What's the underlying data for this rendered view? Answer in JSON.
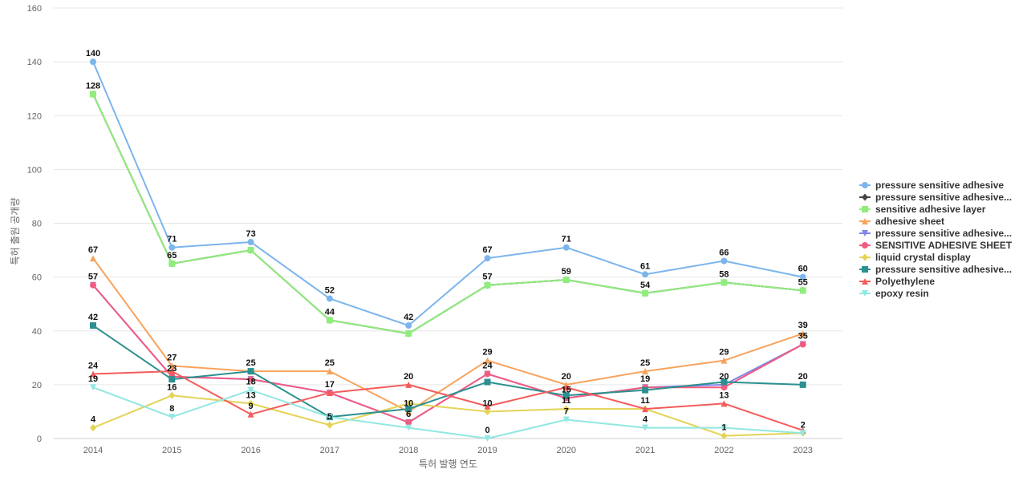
{
  "chart_data": {
    "type": "line",
    "title": "",
    "xlabel": "특허 발행 연도",
    "ylabel": "특허 출원 공개량",
    "ylim": [
      0,
      160
    ],
    "yticks": [
      0,
      20,
      40,
      60,
      80,
      100,
      120,
      140,
      160
    ],
    "grid": true,
    "legend_position": "right",
    "categories": [
      "2014",
      "2015",
      "2016",
      "2017",
      "2018",
      "2019",
      "2020",
      "2021",
      "2022",
      "2023"
    ],
    "series": [
      {
        "name": "pressure sensitive adhesive",
        "color": "#7cb5ec",
        "marker": "circle",
        "labels_shown": true,
        "values": [
          140,
          71,
          73,
          52,
          42,
          67,
          71,
          61,
          66,
          60
        ]
      },
      {
        "name": "pressure sensitive adhesive...",
        "color": "#434348",
        "marker": "diamond",
        "labels_shown": false,
        "values": [
          128,
          65,
          70,
          44,
          39,
          57,
          59,
          54,
          58,
          55
        ]
      },
      {
        "name": "sensitive adhesive layer",
        "color": "#90ed7d",
        "marker": "square",
        "labels_shown": true,
        "values": [
          128,
          65,
          70,
          44,
          39,
          57,
          59,
          54,
          58,
          55
        ]
      },
      {
        "name": "adhesive sheet",
        "color": "#f7a35c",
        "marker": "triangle",
        "labels_shown": true,
        "values": [
          67,
          27,
          25,
          25,
          10,
          29,
          20,
          25,
          29,
          39
        ]
      },
      {
        "name": "pressure sensitive adhesive...",
        "color": "#8085e9",
        "marker": "triangle-down",
        "labels_shown": false,
        "values": [
          57,
          23,
          22,
          17,
          6,
          24,
          15,
          19,
          20,
          35
        ]
      },
      {
        "name": "SENSITIVE ADHESIVE SHEET",
        "color": "#f15c80",
        "marker": "circle",
        "labels_shown": true,
        "values": [
          57,
          23,
          22,
          17,
          6,
          24,
          15,
          19,
          19,
          35
        ]
      },
      {
        "name": "liquid crystal display",
        "color": "#e4d354",
        "marker": "diamond",
        "labels_shown": true,
        "values": [
          4,
          16,
          13,
          5,
          13,
          10,
          11,
          11,
          1,
          2
        ]
      },
      {
        "name": "pressure sensitive adhesive...",
        "color": "#2b908f",
        "marker": "square",
        "labels_shown": true,
        "values": [
          42,
          22,
          25,
          8,
          11,
          21,
          16,
          18,
          21,
          20
        ]
      },
      {
        "name": "Polyethylene",
        "color": "#f45b5b",
        "marker": "triangle",
        "labels_shown": true,
        "values": [
          24,
          25,
          9,
          17,
          20,
          12,
          19,
          11,
          13,
          3
        ]
      },
      {
        "name": "epoxy resin",
        "color": "#91e8e1",
        "marker": "triangle-down",
        "labels_shown": true,
        "values": [
          19,
          8,
          18,
          8,
          4,
          0,
          7,
          4,
          4,
          2
        ]
      }
    ],
    "data_labels": [
      {
        "year": "2014",
        "value": 140,
        "text": "140"
      },
      {
        "year": "2014",
        "value": 128,
        "text": "128"
      },
      {
        "year": "2014",
        "value": 67,
        "text": "67"
      },
      {
        "year": "2014",
        "value": 57,
        "text": "57"
      },
      {
        "year": "2014",
        "value": 42,
        "text": "42"
      },
      {
        "year": "2014",
        "value": 24,
        "text": "24"
      },
      {
        "year": "2014",
        "value": 19,
        "text": "19"
      },
      {
        "year": "2014",
        "value": 4,
        "text": "4"
      },
      {
        "year": "2015",
        "value": 71,
        "text": "71"
      },
      {
        "year": "2015",
        "value": 65,
        "text": "65"
      },
      {
        "year": "2015",
        "value": 27,
        "text": "27"
      },
      {
        "year": "2015",
        "value": 23,
        "text": "23"
      },
      {
        "year": "2015",
        "value": 16,
        "text": "16"
      },
      {
        "year": "2015",
        "value": 8,
        "text": "8"
      },
      {
        "year": "2016",
        "value": 73,
        "text": "73"
      },
      {
        "year": "2016",
        "value": 25,
        "text": "25"
      },
      {
        "year": "2016",
        "value": 18,
        "text": "18"
      },
      {
        "year": "2016",
        "value": 13,
        "text": "13"
      },
      {
        "year": "2016",
        "value": 9,
        "text": "9"
      },
      {
        "year": "2017",
        "value": 52,
        "text": "52"
      },
      {
        "year": "2017",
        "value": 44,
        "text": "44"
      },
      {
        "year": "2017",
        "value": 25,
        "text": "25"
      },
      {
        "year": "2017",
        "value": 17,
        "text": "17"
      },
      {
        "year": "2017",
        "value": 5,
        "text": "5"
      },
      {
        "year": "2018",
        "value": 42,
        "text": "42"
      },
      {
        "year": "2018",
        "value": 20,
        "text": "20"
      },
      {
        "year": "2018",
        "value": 10,
        "text": "10"
      },
      {
        "year": "2018",
        "value": 6,
        "text": "6"
      },
      {
        "year": "2019",
        "value": 67,
        "text": "67"
      },
      {
        "year": "2019",
        "value": 57,
        "text": "57"
      },
      {
        "year": "2019",
        "value": 29,
        "text": "29"
      },
      {
        "year": "2019",
        "value": 24,
        "text": "24"
      },
      {
        "year": "2019",
        "value": 10,
        "text": "10"
      },
      {
        "year": "2019",
        "value": 0,
        "text": "0"
      },
      {
        "year": "2020",
        "value": 71,
        "text": "71"
      },
      {
        "year": "2020",
        "value": 59,
        "text": "59"
      },
      {
        "year": "2020",
        "value": 20,
        "text": "20"
      },
      {
        "year": "2020",
        "value": 15,
        "text": "15"
      },
      {
        "year": "2020",
        "value": 11,
        "text": "11"
      },
      {
        "year": "2020",
        "value": 7,
        "text": "7"
      },
      {
        "year": "2021",
        "value": 61,
        "text": "61"
      },
      {
        "year": "2021",
        "value": 54,
        "text": "54"
      },
      {
        "year": "2021",
        "value": 25,
        "text": "25"
      },
      {
        "year": "2021",
        "value": 19,
        "text": "19"
      },
      {
        "year": "2021",
        "value": 11,
        "text": "11"
      },
      {
        "year": "2021",
        "value": 4,
        "text": "4"
      },
      {
        "year": "2022",
        "value": 66,
        "text": "66"
      },
      {
        "year": "2022",
        "value": 58,
        "text": "58"
      },
      {
        "year": "2022",
        "value": 29,
        "text": "29"
      },
      {
        "year": "2022",
        "value": 20,
        "text": "20"
      },
      {
        "year": "2022",
        "value": 13,
        "text": "13"
      },
      {
        "year": "2022",
        "value": 1,
        "text": "1"
      },
      {
        "year": "2023",
        "value": 60,
        "text": "60"
      },
      {
        "year": "2023",
        "value": 55,
        "text": "55"
      },
      {
        "year": "2023",
        "value": 39,
        "text": "39"
      },
      {
        "year": "2023",
        "value": 35,
        "text": "35"
      },
      {
        "year": "2023",
        "value": 20,
        "text": "20"
      },
      {
        "year": "2023",
        "value": 2,
        "text": "2"
      }
    ]
  }
}
